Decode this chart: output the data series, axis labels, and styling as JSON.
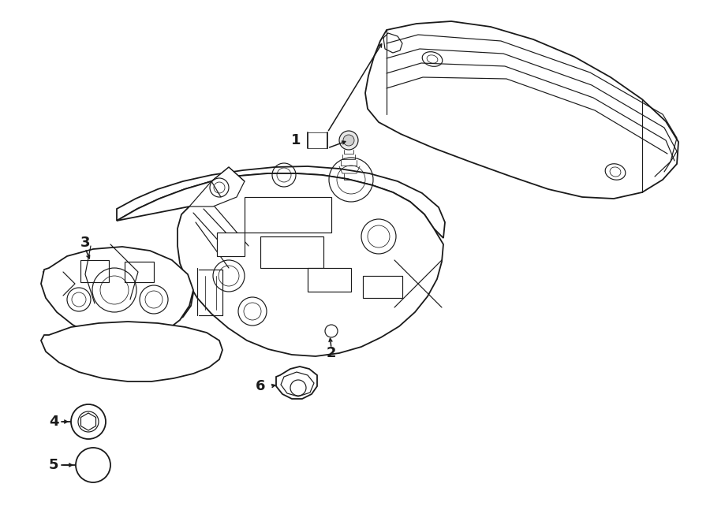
{
  "bg_color": "#ffffff",
  "line_color": "#1a1a1a",
  "fig_width": 9.0,
  "fig_height": 6.61,
  "dpi": 100,
  "label_fontsize": 13,
  "lw_main": 1.4,
  "lw_detail": 0.9,
  "lw_thin": 0.6
}
